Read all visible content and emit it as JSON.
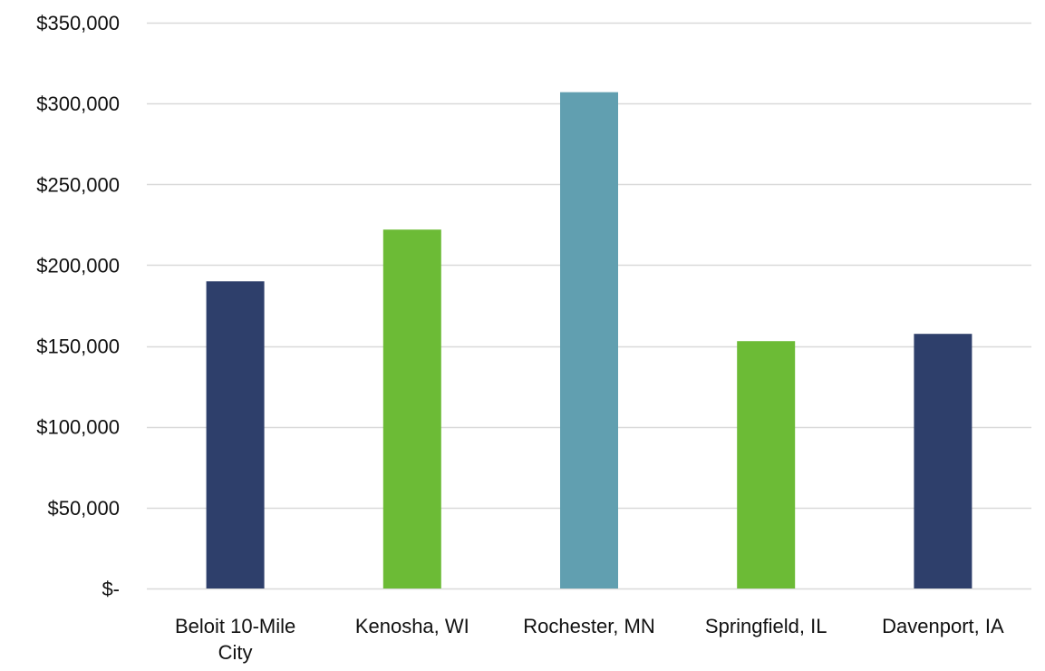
{
  "chart_data": {
    "type": "bar",
    "title": "",
    "xlabel": "",
    "ylabel": "",
    "ylim": [
      0,
      350000
    ],
    "grid": true,
    "legend": "none",
    "y_ticks": [
      0,
      50000,
      100000,
      150000,
      200000,
      250000,
      300000,
      350000
    ],
    "y_tick_labels": [
      "$-",
      "$50,000",
      "$100,000",
      "$150,000",
      "$200,000",
      "$250,000",
      "$300,000",
      "$350,000"
    ],
    "categories": [
      "Beloit 10-Mile City",
      "Kenosha, WI",
      "Rochester, MN",
      "Springfield, IL",
      "Davenport, IA"
    ],
    "category_label_lines": [
      [
        "Beloit 10-Mile",
        "City"
      ],
      [
        "Kenosha, WI"
      ],
      [
        "Rochester, MN"
      ],
      [
        "Springfield, IL"
      ],
      [
        "Davenport, IA"
      ]
    ],
    "values": [
      190000,
      222000,
      307000,
      153000,
      157500
    ],
    "bar_colors": [
      "#2e3f6b",
      "#6cbb36",
      "#619fb0",
      "#6cbb36",
      "#2e3f6b"
    ],
    "gridline_color": "#d9d9d9"
  }
}
